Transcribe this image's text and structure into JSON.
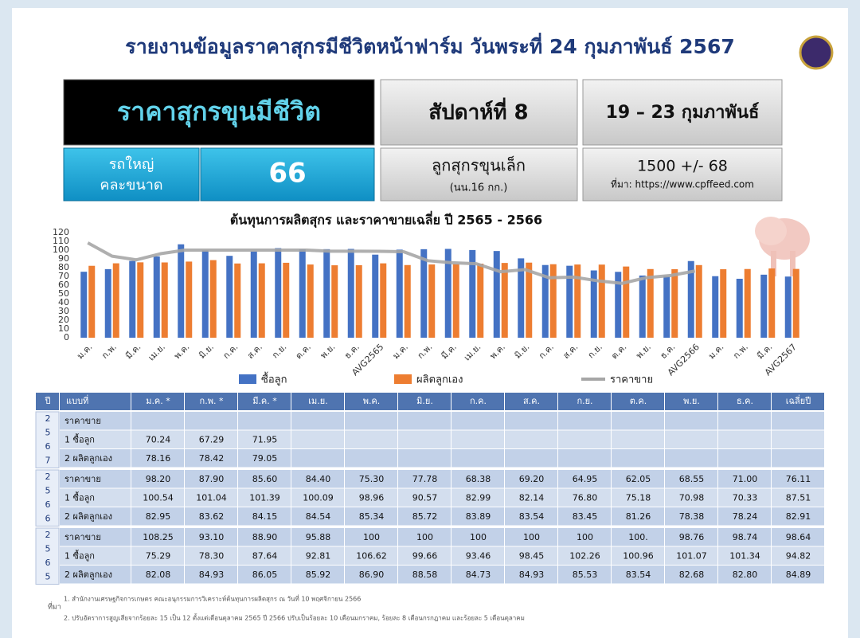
{
  "header": {
    "title": "รายงานข้อมูลราคาสุกรมีชีวิตหน้าฟาร์ม วันพระที่ 24 กุมภาพันธ์ 2567"
  },
  "boxes": {
    "main": "ราคาสุกรขุนมีชีวิต",
    "week": "สัปดาห์ที่ 8",
    "dates": "19 – 23 กุมภาพันธ์",
    "truck": [
      "รถใหญ่",
      "คละขนาด"
    ],
    "price": "66",
    "piglet": "ลูกสุกรขุนเล็ก",
    "piglet_weight": "(นน.16 กก.)",
    "piglet_price": "1500 +/- 68",
    "source": "ที่มา: https://www.cpffeed.com"
  },
  "chart_data": {
    "type": "bar",
    "title": "ต้นทุนการผลิตสุกร และราคาขายเฉลี่ย ปี 2565 - 2566",
    "categories": [
      "ม.ค.",
      "ก.พ.",
      "มี.ค.",
      "เม.ย.",
      "พ.ค.",
      "มิ.ย.",
      "ก.ค.",
      "ส.ค.",
      "ก.ย.",
      "ต.ค.",
      "พ.ย.",
      "ธ.ค.",
      "AVG2565",
      "ม.ค.",
      "ก.พ.",
      "มี.ค.",
      "เม.ย.",
      "พ.ค.",
      "มิ.ย.",
      "ก.ค.",
      "ส.ค.",
      "ก.ย.",
      "ต.ค.",
      "พ.ย.",
      "ธ.ค.",
      "AVG2566",
      "ม.ค.",
      "ก.พ.",
      "มี.ค.",
      "AVG2567"
    ],
    "series": [
      {
        "name": "ซื้อลูก",
        "color": "#4472c4",
        "kind": "bar",
        "values": [
          75.29,
          78.3,
          87.64,
          92.81,
          106.62,
          99.66,
          93.46,
          98.45,
          102.26,
          100.96,
          101.07,
          101.34,
          94.82,
          100.54,
          101.04,
          101.39,
          100.09,
          98.96,
          90.57,
          82.99,
          82.14,
          76.8,
          75.18,
          70.98,
          70.33,
          87.51,
          70.24,
          67.29,
          71.95,
          69.8
        ]
      },
      {
        "name": "ผลิตลูกเอง",
        "color": "#ed7d31",
        "kind": "bar",
        "values": [
          82.08,
          84.93,
          86.05,
          85.92,
          86.9,
          88.58,
          84.73,
          84.93,
          85.53,
          83.54,
          82.68,
          82.8,
          84.89,
          82.95,
          83.62,
          84.15,
          84.54,
          85.34,
          85.72,
          83.89,
          83.54,
          83.45,
          81.26,
          78.38,
          78.24,
          82.91,
          78.16,
          78.42,
          79.05,
          78.5
        ]
      },
      {
        "name": "ราคาขาย",
        "color": "#a6a6a6",
        "kind": "line",
        "values": [
          108.25,
          93.1,
          88.9,
          95.88,
          100,
          100,
          100,
          100,
          100,
          100,
          98.76,
          98.74,
          98.64,
          98.2,
          87.9,
          85.6,
          84.4,
          75.3,
          77.78,
          68.38,
          69.2,
          64.95,
          62.05,
          68.55,
          71.0,
          76.11,
          null,
          null,
          null,
          null
        ]
      }
    ],
    "ylim": [
      0,
      120
    ],
    "yticks": [
      0,
      10,
      20,
      30,
      40,
      50,
      60,
      70,
      80,
      90,
      100,
      110,
      120
    ],
    "grid": false
  },
  "table": {
    "columns": [
      "ปี",
      "แบบที่",
      "ม.ค. *",
      "ก.พ. *",
      "มี.ค. *",
      "เม.ย.",
      "พ.ค.",
      "มิ.ย.",
      "ก.ค.",
      "ส.ค.",
      "ก.ย.",
      "ต.ค.",
      "พ.ย.",
      "ธ.ค.",
      "เฉลี่ยปี"
    ],
    "groups": [
      {
        "year": [
          "2",
          "5",
          "6",
          "7"
        ],
        "rows": [
          {
            "label": "ราคาขาย",
            "cells": [
              null,
              null,
              null,
              null,
              null,
              null,
              null,
              null,
              null,
              null,
              null,
              null,
              null
            ]
          },
          {
            "label": "1 ซื้อลูก",
            "cells": [
              "70.24",
              "67.29",
              "71.95",
              null,
              null,
              null,
              null,
              null,
              null,
              null,
              null,
              null,
              null
            ]
          },
          {
            "label": "2 ผลิตลูกเอง",
            "cells": [
              "78.16",
              "78.42",
              "79.05",
              null,
              null,
              null,
              null,
              null,
              null,
              null,
              null,
              null,
              null
            ]
          }
        ]
      },
      {
        "year": [
          "2",
          "5",
          "6",
          "6"
        ],
        "rows": [
          {
            "label": "ราคาขาย",
            "cells": [
              "98.20",
              "87.90",
              "85.60",
              "84.40",
              "75.30",
              "77.78",
              "68.38",
              "69.20",
              "64.95",
              "62.05",
              "68.55",
              "71.00",
              "76.11"
            ]
          },
          {
            "label": "1 ซื้อลูก",
            "cells": [
              "100.54",
              "101.04",
              "101.39",
              "100.09",
              "98.96",
              "90.57",
              "82.99",
              "82.14",
              "76.80",
              "75.18",
              "70.98",
              "70.33",
              "87.51"
            ]
          },
          {
            "label": "2 ผลิตลูกเอง",
            "cells": [
              "82.95",
              "83.62",
              "84.15",
              "84.54",
              "85.34",
              "85.72",
              "83.89",
              "83.54",
              "83.45",
              "81.26",
              "78.38",
              "78.24",
              "82.91"
            ]
          }
        ]
      },
      {
        "year": [
          "2",
          "5",
          "6",
          "5"
        ],
        "rows": [
          {
            "label": "ราคาขาย",
            "cells": [
              "108.25",
              "93.10",
              "88.90",
              "95.88",
              "100",
              "100",
              "100",
              "100",
              "100",
              "100.",
              "98.76",
              "98.74",
              "98.64"
            ]
          },
          {
            "label": "1 ซื้อลูก",
            "cells": [
              "75.29",
              "78.30",
              "87.64",
              "92.81",
              "106.62",
              "99.66",
              "93.46",
              "98.45",
              "102.26",
              "100.96",
              "101.07",
              "101.34",
              "94.82"
            ]
          },
          {
            "label": "2 ผลิตลูกเอง",
            "cells": [
              "82.08",
              "84.93",
              "86.05",
              "85.92",
              "86.90",
              "88.58",
              "84.73",
              "84.93",
              "85.53",
              "83.54",
              "82.68",
              "82.80",
              "84.89"
            ]
          }
        ]
      }
    ]
  },
  "footnotes": {
    "label": "ที่มา",
    "lines": [
      "1. สำนักงานเศรษฐกิจการเกษตร คณะอนุกรรมการวิเคราะห์ต้นทุนการผลิตสุกร ณ วันที่ 10 พฤศจิกายน 2566",
      "2. ปรับอัตราการสูญเสียจากร้อยละ 15 เป็น 12 ตั้งแต่เดือนตุลาคม 2565 ปี 2566 ปรับเป็นร้อยละ 10 เดือนมกราคม, ร้อยละ 8 เดือนกรกฎาคม และร้อยละ 5 เดือนตุลาคม"
    ]
  }
}
